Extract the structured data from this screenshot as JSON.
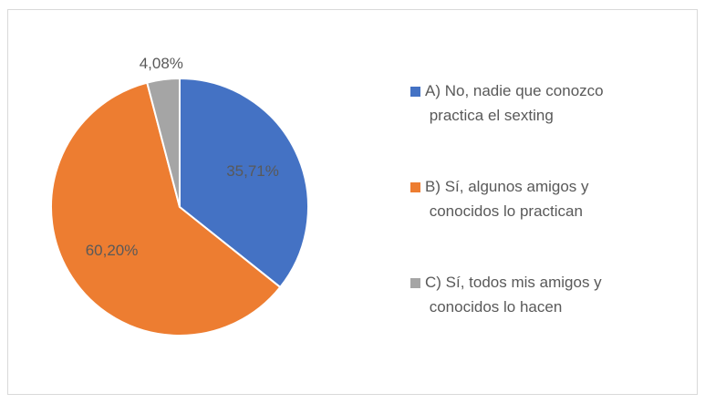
{
  "chart_data": {
    "type": "pie",
    "categories": [
      "A) No, nadie que conozco practica el sexting",
      "B) Sí, algunos amigos y conocidos lo practican",
      "C) Sí, todos mis amigos y conocidos lo hacen"
    ],
    "values": [
      35.71,
      60.2,
      4.08
    ],
    "value_labels": [
      "35,71%",
      "60,20%",
      "4,08%"
    ],
    "colors": [
      "#4472c4",
      "#ed7d31",
      "#a5a5a5"
    ],
    "legend": "right"
  }
}
